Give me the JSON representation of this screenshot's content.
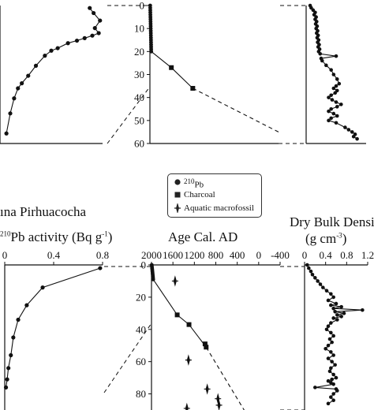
{
  "texts": {
    "site_title": "ına Pirhuacocha",
    "pb_title_pre": "",
    "pb_title_sup": "210",
    "pb_title_post": "Pb activity (Bq g",
    "pb_title_sup2": "-1",
    "pb_title_end": ")",
    "age_title": "Age Cal. AD",
    "dbd_title_line1": "Dry Bulk Densit",
    "dbd_title_line2": "(g cm",
    "dbd_title_sup": "-3",
    "dbd_title_end": ")"
  },
  "legend": {
    "pb_sup": "210",
    "pb_label": "Pb",
    "charcoal_label": "Charcoal",
    "macro_label": "Aquatic macrofossil"
  },
  "chart_data": [
    {
      "id": "top-left-pb",
      "type": "line",
      "xlim": [
        0,
        0.8
      ],
      "ylim": [
        0,
        55
      ],
      "series": [
        {
          "x": [
            0.7,
            0.73,
            0.78,
            0.74,
            0.77,
            0.72,
            0.66,
            0.6,
            0.53,
            0.45,
            0.4,
            0.35,
            0.28,
            0.22,
            0.17,
            0.14,
            0.11,
            0.08,
            0.05
          ],
          "y": [
            1,
            3,
            6,
            9,
            11,
            12,
            13,
            14,
            15,
            17,
            18,
            20,
            24,
            28,
            31,
            33,
            37,
            43,
            51
          ]
        }
      ]
    },
    {
      "id": "top-middle-age",
      "type": "line",
      "xlim": [
        2000,
        -400
      ],
      "ylim": [
        0,
        60
      ],
      "yticks": [
        0,
        10,
        20,
        30,
        40,
        50,
        60
      ],
      "pb_points": {
        "x": [
          1995,
          1994,
          1993,
          1992,
          1991,
          1990,
          1989,
          1988,
          1987,
          1986,
          1985,
          1984,
          1983,
          1982,
          1981,
          1980,
          1979,
          1978,
          1977,
          1976,
          1975
        ],
        "y": [
          0,
          1,
          2,
          3,
          4,
          5,
          6,
          7,
          8,
          9,
          10,
          11,
          12,
          13,
          14,
          15,
          16,
          17,
          18,
          19,
          20
        ]
      },
      "charcoal": {
        "x": [
          1600,
          1200
        ],
        "y": [
          27,
          36
        ]
      },
      "model_solid": {
        "x": [
          1975,
          1600,
          1200
        ],
        "y": [
          20,
          27,
          36
        ]
      },
      "model_dashed": {
        "x": [
          1200,
          -400
        ],
        "y": [
          36,
          55
        ]
      }
    },
    {
      "id": "top-right-dbd",
      "type": "line",
      "xlim": [
        0,
        1.2
      ],
      "ylim": [
        0,
        60
      ],
      "series": [
        {
          "x": [
            0.08,
            0.1,
            0.14,
            0.18,
            0.16,
            0.2,
            0.18,
            0.21,
            0.19,
            0.22,
            0.2,
            0.23,
            0.21,
            0.24,
            0.22,
            0.25,
            0.23,
            0.26,
            0.24,
            0.27,
            0.25,
            0.28,
            0.6,
            0.3,
            0.32,
            0.4,
            0.5,
            0.55,
            0.62,
            0.66,
            0.6,
            0.55,
            0.62,
            0.58,
            0.5,
            0.45,
            0.52,
            0.6,
            0.7,
            0.62,
            0.5,
            0.45,
            0.55,
            0.62,
            0.5,
            0.45,
            0.6,
            0.78,
            0.85,
            0.92,
            0.98,
            0.95,
            1.02
          ],
          "y": [
            0,
            1,
            2,
            3,
            4,
            5,
            6,
            7,
            8,
            9,
            10,
            11,
            12,
            13,
            14,
            15,
            16,
            17,
            18,
            19,
            20,
            21,
            22,
            23,
            24,
            26,
            28,
            30,
            32,
            34,
            35,
            36,
            37,
            38,
            39,
            40,
            41,
            42,
            43,
            44,
            45,
            46,
            47,
            48,
            49,
            50,
            51,
            53,
            54,
            55,
            56,
            57,
            58
          ]
        }
      ]
    },
    {
      "id": "bottom-left-pb",
      "type": "line",
      "xlim": [
        0,
        0.8
      ],
      "xticks": [
        0,
        0.4,
        0.8
      ],
      "xticklabels": [
        "0",
        "0.4",
        "0.8"
      ],
      "ylim": [
        0,
        90
      ],
      "series": [
        {
          "x": [
            0.78,
            0.31,
            0.18,
            0.11,
            0.07,
            0.05,
            0.03,
            0.02,
            0.01
          ],
          "y": [
            2,
            14,
            25,
            34,
            45,
            56,
            64,
            71,
            76
          ]
        }
      ]
    },
    {
      "id": "bottom-middle-age",
      "type": "line",
      "xlim": [
        2000,
        -400
      ],
      "xticks": [
        2000,
        1600,
        1200,
        800,
        400,
        0,
        -400
      ],
      "xticklabels": [
        "2000",
        "1600",
        "1200",
        "800",
        "400",
        "0",
        "-400"
      ],
      "ylim": [
        0,
        90
      ],
      "yticks": [
        0,
        20,
        40,
        60,
        80
      ],
      "pb_points": {
        "x": [
          1995,
          1992,
          1989,
          1986,
          1983,
          1980,
          1977,
          1974,
          1971,
          1968
        ],
        "y": [
          0,
          1,
          2,
          3,
          4,
          5,
          6,
          7,
          8,
          9
        ]
      },
      "charcoal": {
        "x": [
          1520,
          1300,
          1000,
          980
        ],
        "y": [
          31,
          37,
          49,
          51
        ]
      },
      "macrofossil": {
        "x": [
          1560,
          1310,
          960,
          760,
          740,
          1340
        ],
        "y": [
          10,
          59,
          77,
          83,
          87,
          89
        ]
      },
      "model_solid": {
        "x": [
          1968,
          1520,
          1300,
          980
        ],
        "y": [
          9,
          31,
          37,
          51
        ]
      },
      "model_dashed": {
        "x": [
          980,
          200
        ],
        "y": [
          51,
          94
        ]
      }
    },
    {
      "id": "bottom-right-dbd",
      "type": "line",
      "xlim": [
        0,
        1.2
      ],
      "xticks": [
        0,
        0.4,
        0.8,
        1.2
      ],
      "xticklabels": [
        "0",
        "0.4",
        "0.8",
        "1.2"
      ],
      "ylim": [
        0,
        90
      ],
      "series": [
        {
          "x": [
            0.05,
            0.08,
            0.12,
            0.15,
            0.2,
            0.25,
            0.3,
            0.35,
            0.42,
            0.5,
            0.55,
            0.45,
            0.6,
            0.5,
            0.7,
            0.55,
            1.1,
            0.58,
            0.75,
            0.62,
            0.7,
            0.55,
            0.62,
            0.5,
            0.45,
            0.42,
            0.5,
            0.55,
            0.48,
            0.52,
            0.45,
            0.4,
            0.5,
            0.55,
            0.45,
            0.52,
            0.58,
            0.5,
            0.48,
            0.55,
            0.6,
            0.52,
            0.45,
            0.5,
            0.55,
            0.2,
            0.6,
            0.62,
            0.55,
            0.5,
            0.55,
            0.45
          ],
          "y": [
            0,
            2,
            4,
            6,
            8,
            10,
            12,
            14,
            16,
            18,
            20,
            22,
            24,
            25,
            26,
            27,
            28,
            29,
            30,
            31,
            32,
            33,
            34,
            36,
            38,
            40,
            42,
            44,
            46,
            48,
            50,
            52,
            54,
            56,
            58,
            60,
            62,
            64,
            66,
            68,
            70,
            71,
            72,
            73,
            74,
            76,
            77,
            78,
            80,
            82,
            84,
            86
          ]
        }
      ]
    }
  ]
}
